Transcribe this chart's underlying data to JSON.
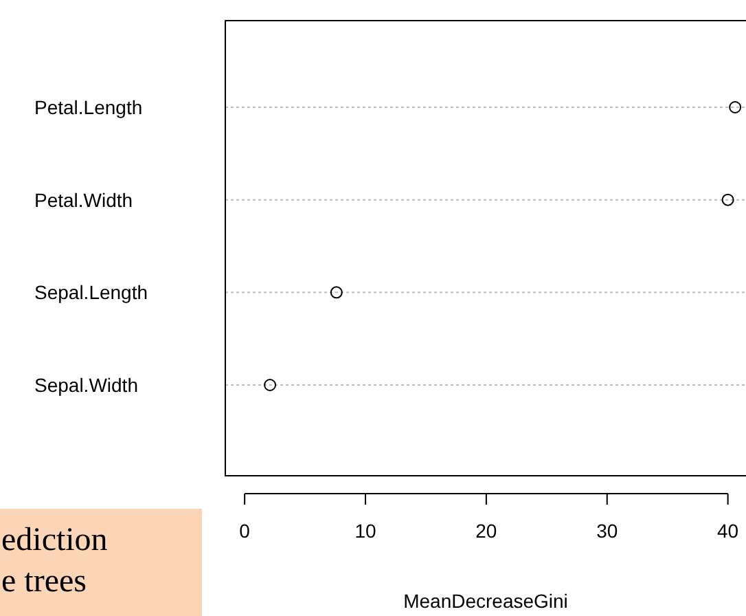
{
  "chart_data": {
    "type": "scatter",
    "orientation": "horizontal",
    "categories": [
      "Petal.Length",
      "Petal.Width",
      "Sepal.Length",
      "Sepal.Width"
    ],
    "values": [
      40.6,
      40.0,
      7.6,
      2.1
    ],
    "color": "#000000",
    "marker": "circle",
    "grid": "y",
    "xlabel": "MeanDecreaseGini",
    "xlim": [
      -1.6,
      41.5
    ],
    "xticks": [
      0,
      10,
      20,
      30,
      40
    ],
    "annotations": [
      "ediction",
      "e trees"
    ]
  }
}
